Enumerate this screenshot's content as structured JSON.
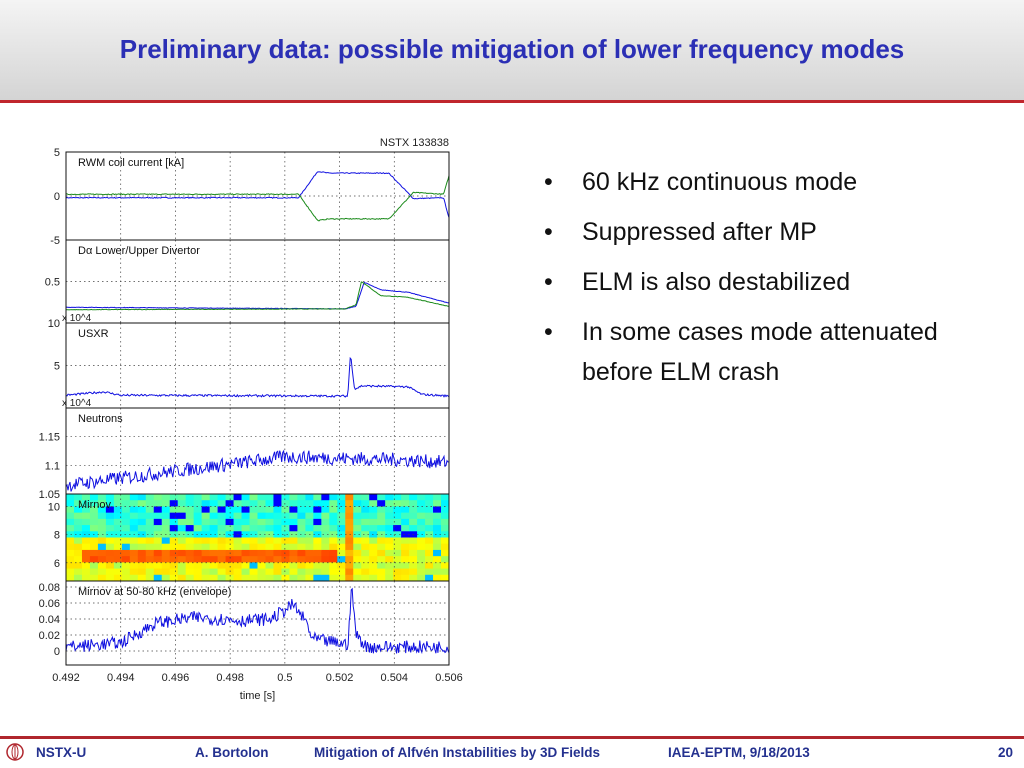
{
  "title": "Preliminary data: possible mitigation of lower frequency modes",
  "bullets": [
    "60 kHz continuous mode",
    "Suppressed after MP",
    "ELM is also destabilized",
    "In some cases mode attenuated before ELM crash"
  ],
  "footer": {
    "org": "NSTX-U",
    "author": "A. Bortolon",
    "talk": "Mitigation of Alfvén Instabilities by 3D Fields",
    "meeting": "IAEA-EPTM, 9/18/2013",
    "page": "20"
  },
  "colors": {
    "title": "#2b2fb5",
    "accent": "#c0262d",
    "blue": "#1010e0",
    "green": "#1a8a1a"
  },
  "chart_data": {
    "type": "line",
    "shot_label": "NSTX 133838",
    "xlabel": "time [s]",
    "xlim": [
      0.492,
      0.506
    ],
    "xticks": [
      "0.492",
      "0.494",
      "0.496",
      "0.498",
      "0.5",
      "0.502",
      "0.504",
      "0.506"
    ],
    "grid": true,
    "panels": [
      {
        "label": "RWM coil current [kA]",
        "ylim": [
          -5,
          5
        ],
        "yticks": [
          "5",
          "0",
          "-5"
        ],
        "series": [
          {
            "name": "blue",
            "color": "#1010e0",
            "noise": 0.05,
            "points": [
              [
                0.492,
                -0.2
              ],
              [
                0.5005,
                -0.2
              ],
              [
                0.5012,
                2.8
              ],
              [
                0.5016,
                2.6
              ],
              [
                0.5038,
                2.6
              ],
              [
                0.5047,
                -0.3
              ],
              [
                0.5058,
                -0.2
              ],
              [
                0.506,
                -2.5
              ]
            ]
          },
          {
            "name": "green",
            "color": "#1a8a1a",
            "noise": 0.05,
            "points": [
              [
                0.492,
                0.2
              ],
              [
                0.5005,
                0.2
              ],
              [
                0.5012,
                -2.8
              ],
              [
                0.5016,
                -2.6
              ],
              [
                0.5038,
                -2.6
              ],
              [
                0.5047,
                0.4
              ],
              [
                0.5058,
                0.2
              ],
              [
                0.506,
                2.3
              ]
            ]
          }
        ]
      },
      {
        "label": "Dα Lower/Upper Divertor",
        "ylim": [
          0,
          1
        ],
        "yticks": [
          "0.5"
        ],
        "series": [
          {
            "name": "blue",
            "color": "#1010e0",
            "noise": 0.003,
            "points": [
              [
                0.492,
                0.19
              ],
              [
                0.5022,
                0.17
              ],
              [
                0.5026,
                0.2
              ],
              [
                0.5029,
                0.49
              ],
              [
                0.5035,
                0.4
              ],
              [
                0.5045,
                0.37
              ],
              [
                0.506,
                0.24
              ]
            ]
          },
          {
            "name": "green",
            "color": "#1a8a1a",
            "noise": 0.003,
            "points": [
              [
                0.492,
                0.16
              ],
              [
                0.5022,
                0.17
              ],
              [
                0.5026,
                0.22
              ],
              [
                0.5028,
                0.5
              ],
              [
                0.5035,
                0.33
              ],
              [
                0.5045,
                0.31
              ],
              [
                0.506,
                0.2
              ]
            ]
          }
        ]
      },
      {
        "label": "USXR",
        "ylim": [
          0,
          10
        ],
        "yticks": [
          "10",
          "5"
        ],
        "multiplier": "x 10^4",
        "series": [
          {
            "name": "blue",
            "color": "#1010e0",
            "noise": 0.12,
            "points": [
              [
                0.492,
                1.5
              ],
              [
                0.4934,
                1.9
              ],
              [
                0.494,
                1.5
              ],
              [
                0.5023,
                1.4
              ],
              [
                0.5024,
                6.4
              ],
              [
                0.50255,
                2.2
              ],
              [
                0.5028,
                2.6
              ],
              [
                0.5045,
                2.5
              ],
              [
                0.505,
                1.6
              ],
              [
                0.506,
                1.4
              ]
            ]
          }
        ]
      },
      {
        "label": "Neutrons",
        "ylim": [
          1.05,
          1.2
        ],
        "yticks": [
          "1.15",
          "1.1",
          "1.05"
        ],
        "multiplier": "x 10^4",
        "series": [
          {
            "name": "blue",
            "color": "#1010e0",
            "noise": 0.012,
            "points": [
              [
                0.492,
                1.065
              ],
              [
                0.496,
                1.09
              ],
              [
                0.4985,
                1.105
              ],
              [
                0.5,
                1.115
              ],
              [
                0.504,
                1.11
              ],
              [
                0.506,
                1.105
              ]
            ]
          }
        ]
      },
      {
        "label": "Mirnov",
        "type": "heatmap",
        "ylim": [
          4.7,
          10.9
        ],
        "yticks": [
          "10",
          "8",
          "6"
        ],
        "mode": {
          "freq": 6.5,
          "t_end": 0.5018,
          "burst_t": 0.50235
        }
      },
      {
        "label": "Mirnov at 50-80 kHz (envelope)",
        "ylim": [
          -0.0175,
          0.0875
        ],
        "yticks": [
          "0.08",
          "0.06",
          "0.04",
          "0.02",
          "0"
        ],
        "series": [
          {
            "name": "blue",
            "color": "#1010e0",
            "noise": 0.008,
            "points": [
              [
                0.492,
                0.005
              ],
              [
                0.494,
                0.01
              ],
              [
                0.4953,
                0.035
              ],
              [
                0.4967,
                0.042
              ],
              [
                0.4985,
                0.038
              ],
              [
                0.4995,
                0.04
              ],
              [
                0.5003,
                0.058
              ],
              [
                0.5008,
                0.035
              ],
              [
                0.501,
                0.015
              ],
              [
                0.5023,
                0.008
              ],
              [
                0.50245,
                0.08
              ],
              [
                0.5026,
                0.02
              ],
              [
                0.503,
                0.005
              ],
              [
                0.506,
                0.005
              ]
            ]
          }
        ]
      }
    ]
  }
}
